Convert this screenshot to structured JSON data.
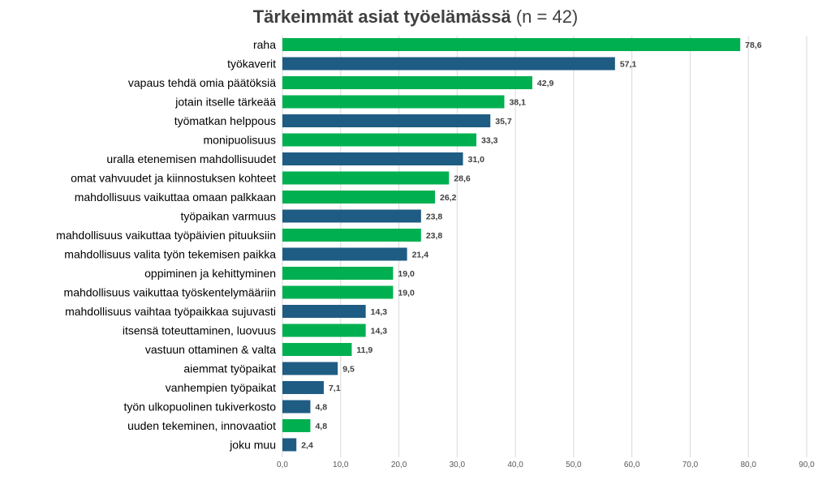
{
  "chart_data": {
    "type": "bar",
    "orientation": "horizontal",
    "title": "Tärkeimmät asiat työelämässä",
    "subtitle": "(n = 42)",
    "categories": [
      "raha",
      "työkaverit",
      "vapaus tehdä omia päätöksiä",
      "jotain itselle tärkeää",
      "työmatkan helppous",
      "monipuolisuus",
      "uralla etenemisen mahdollisuudet",
      "omat vahvuudet ja kiinnostuksen kohteet",
      "mahdollisuus vaikuttaa omaan palkkaan",
      "työpaikan varmuus",
      "mahdollisuus vaikuttaa työpäivien pituuksiin",
      "mahdollisuus valita työn tekemisen paikka",
      "oppiminen ja kehittyminen",
      "mahdollisuus vaikuttaa työskentelymääriin",
      "mahdollisuus vaihtaa työpaikkaa sujuvasti",
      "itsensä toteuttaminen, luovuus",
      "vastuun ottaminen & valta",
      "aiemmat työpaikat",
      "vanhempien työpaikat",
      "työn ulkopuolinen tukiverkosto",
      "uuden tekeminen, innovaatiot",
      "joku muu"
    ],
    "values": [
      78.6,
      57.1,
      42.9,
      38.1,
      35.7,
      33.3,
      31.0,
      28.6,
      26.2,
      23.8,
      23.8,
      21.4,
      19.0,
      19.0,
      14.3,
      14.3,
      11.9,
      9.5,
      7.1,
      4.8,
      4.8,
      2.4
    ],
    "value_labels": [
      "78,6",
      "57,1",
      "42,9",
      "38,1",
      "35,7",
      "33,3",
      "31,0",
      "28,6",
      "26,2",
      "23,8",
      "23,8",
      "21,4",
      "19,0",
      "19,0",
      "14,3",
      "14,3",
      "11,9",
      "9,5",
      "7,1",
      "4,8",
      "4,8",
      "2,4"
    ],
    "bar_colors": [
      "green",
      "blue",
      "green",
      "green",
      "blue",
      "green",
      "blue",
      "green",
      "green",
      "blue",
      "green",
      "blue",
      "green",
      "green",
      "blue",
      "green",
      "green",
      "blue",
      "blue",
      "blue",
      "green",
      "blue"
    ],
    "colors": {
      "green": "#00B050",
      "blue": "#1F5C84",
      "grid": "#D9D9D9",
      "title": "#404040"
    },
    "xlim": [
      0,
      90
    ],
    "x_ticks": [
      "0,0",
      "10,0",
      "20,0",
      "30,0",
      "40,0",
      "50,0",
      "60,0",
      "70,0",
      "80,0",
      "90,0"
    ],
    "grid": true,
    "legend": "none"
  }
}
